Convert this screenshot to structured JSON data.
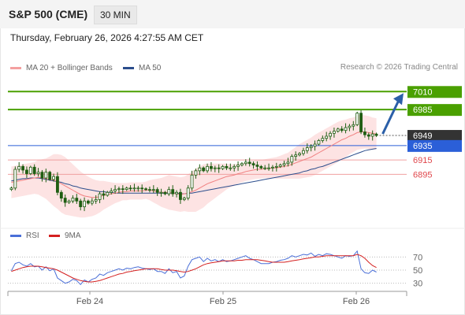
{
  "header": {
    "title": "S&P 500 (CME)",
    "timeframe": "30 MIN"
  },
  "timestamp": "Thursday, February 26, 2026 4:27:55 AM CET",
  "legend": {
    "ma20": {
      "label": "MA 20 + Bollinger Bands",
      "color": "#f08080"
    },
    "ma50": {
      "label": "MA 50",
      "color": "#2b4d8c"
    },
    "rsi": {
      "label": "RSI",
      "color": "#4a6fd8"
    },
    "ma9": {
      "label": "9MA",
      "color": "#d42020"
    }
  },
  "source": "Research © 2026 Trading Central",
  "colors": {
    "resistance": "#4aa000",
    "support": "#e0474c",
    "pivot": "#2b5fd8",
    "last": "#333333",
    "candle": "#1f5e12",
    "arrow": "#2b5fa8"
  },
  "chart_data": [
    {
      "type": "candlestick",
      "ylim": [
        6820,
        7030
      ],
      "x_ticks": [
        "Feb 24",
        "Feb 25",
        "Feb 26"
      ],
      "levels": [
        {
          "label": "7010",
          "value": 7010,
          "kind": "resistance"
        },
        {
          "label": "6985",
          "value": 6985,
          "kind": "resistance"
        },
        {
          "label": "6949",
          "value": 6949,
          "kind": "last"
        },
        {
          "label": "6935",
          "value": 6935,
          "kind": "pivot"
        },
        {
          "label": "6915",
          "value": 6915,
          "kind": "support"
        },
        {
          "label": "6895",
          "value": 6895,
          "kind": "support"
        }
      ],
      "close": [
        6876,
        6902,
        6906,
        6901,
        6896,
        6905,
        6896,
        6898,
        6890,
        6898,
        6888,
        6892,
        6870,
        6862,
        6856,
        6858,
        6862,
        6858,
        6850,
        6858,
        6855,
        6858,
        6860,
        6868,
        6866,
        6870,
        6872,
        6874,
        6875,
        6874,
        6876,
        6875,
        6876,
        6876,
        6875,
        6874,
        6873,
        6874,
        6870,
        6870,
        6868,
        6874,
        6868,
        6870,
        6860,
        6862,
        6876,
        6894,
        6900,
        6904,
        6900,
        6906,
        6903,
        6904,
        6903,
        6906,
        6904,
        6904,
        6906,
        6908,
        6910,
        6912,
        6910,
        6908,
        6906,
        6904,
        6904,
        6904,
        6905,
        6906,
        6908,
        6910,
        6912,
        6920,
        6922,
        6924,
        6928,
        6932,
        6934,
        6937,
        6942,
        6945,
        6948,
        6952,
        6955,
        6958,
        6956,
        6960,
        6962,
        6964,
        6980,
        6954,
        6950,
        6948,
        6951,
        6949
      ],
      "ma20": [
        6884,
        6885,
        6886,
        6887,
        6888,
        6889,
        6890,
        6891,
        6890,
        6889,
        6888,
        6887,
        6885,
        6882,
        6879,
        6876,
        6873,
        6870,
        6867,
        6865,
        6864,
        6863,
        6863,
        6864,
        6866,
        6867,
        6868,
        6869,
        6870,
        6871,
        6871,
        6872,
        6872,
        6872,
        6872,
        6873,
        6873,
        6872,
        6871,
        6870,
        6870,
        6870,
        6869,
        6868,
        6867,
        6868,
        6869,
        6871,
        6873,
        6876,
        6879,
        6882,
        6884,
        6886,
        6888,
        6890,
        6892,
        6893,
        6894,
        6896,
        6897,
        6899,
        6900,
        6901,
        6902,
        6902,
        6903,
        6903,
        6904,
        6904,
        6905,
        6906,
        6907,
        6909,
        6911,
        6913,
        6915,
        6917,
        6919,
        6922,
        6925,
        6928,
        6931,
        6934,
        6937,
        6940,
        6943,
        6945,
        6948,
        6950,
        6953,
        6954,
        6954,
        6953,
        6952,
        6951
      ],
      "ma50": [
        6886,
        6887,
        6888,
        6889,
        6889,
        6890,
        6890,
        6890,
        6889,
        6888,
        6887,
        6886,
        6885,
        6884,
        6882,
        6881,
        6879,
        6878,
        6876,
        6875,
        6874,
        6873,
        6872,
        6871,
        6871,
        6870,
        6870,
        6869,
        6869,
        6869,
        6869,
        6869,
        6869,
        6869,
        6869,
        6869,
        6869,
        6869,
        6869,
        6869,
        6869,
        6869,
        6869,
        6869,
        6868,
        6868,
        6869,
        6869,
        6870,
        6871,
        6872,
        6873,
        6874,
        6875,
        6876,
        6877,
        6878,
        6879,
        6880,
        6881,
        6882,
        6883,
        6884,
        6885,
        6886,
        6887,
        6888,
        6889,
        6890,
        6891,
        6892,
        6893,
        6894,
        6895,
        6896,
        6897,
        6899,
        6900,
        6902,
        6903,
        6905,
        6906,
        6908,
        6910,
        6912,
        6914,
        6916,
        6918,
        6920,
        6922,
        6924,
        6926,
        6928,
        6929,
        6930,
        6931
      ],
      "bollinger_width": [
        22,
        22,
        22,
        22,
        22,
        22,
        22,
        24,
        26,
        28,
        32,
        36,
        38,
        40,
        40,
        38,
        36,
        34,
        32,
        30,
        28,
        26,
        24,
        22,
        20,
        18,
        16,
        14,
        13,
        12,
        12,
        12,
        12,
        12,
        12,
        12,
        14,
        16,
        18,
        20,
        22,
        24,
        24,
        24,
        24,
        24,
        26,
        28,
        30,
        30,
        30,
        28,
        26,
        24,
        22,
        20,
        18,
        16,
        15,
        14,
        13,
        13,
        13,
        13,
        13,
        13,
        13,
        14,
        14,
        15,
        16,
        17,
        18,
        20,
        22,
        24,
        25,
        26,
        27,
        28,
        28,
        28,
        28,
        28,
        28,
        28,
        27,
        26,
        25,
        24,
        24,
        24,
        23,
        23,
        22,
        22
      ]
    },
    {
      "type": "line",
      "ylim": [
        20,
        80
      ],
      "y_ticks": [
        "70",
        "50",
        "30"
      ],
      "series": [
        {
          "name": "RSI",
          "values": [
            49,
            60,
            62,
            58,
            56,
            60,
            55,
            56,
            50,
            55,
            49,
            52,
            38,
            34,
            30,
            32,
            36,
            34,
            28,
            35,
            32,
            36,
            38,
            44,
            42,
            46,
            48,
            50,
            52,
            50,
            53,
            52,
            54,
            55,
            53,
            52,
            51,
            52,
            48,
            48,
            45,
            52,
            46,
            48,
            38,
            41,
            56,
            66,
            68,
            70,
            63,
            68,
            64,
            66,
            63,
            66,
            63,
            64,
            66,
            68,
            70,
            72,
            68,
            66,
            63,
            60,
            60,
            60,
            62,
            63,
            65,
            66,
            68,
            72,
            70,
            72,
            74,
            73,
            76,
            71,
            74,
            72,
            75,
            74,
            72,
            70,
            68,
            72,
            71,
            72,
            79,
            52,
            46,
            45,
            50,
            47
          ]
        },
        {
          "name": "9MA",
          "values": [
            48,
            50,
            52,
            54,
            55,
            56,
            56,
            56,
            55,
            54,
            53,
            52,
            50,
            47,
            44,
            41,
            38,
            36,
            34,
            33,
            32,
            32,
            33,
            34,
            36,
            38,
            40,
            42,
            44,
            45,
            47,
            48,
            49,
            50,
            51,
            52,
            52,
            52,
            52,
            51,
            50,
            50,
            50,
            49,
            48,
            47,
            48,
            50,
            52,
            55,
            58,
            60,
            61,
            62,
            63,
            64,
            64,
            64,
            64,
            65,
            65,
            66,
            66,
            66,
            66,
            65,
            64,
            63,
            62,
            62,
            62,
            62,
            63,
            64,
            65,
            66,
            67,
            68,
            69,
            70,
            70,
            71,
            72,
            72,
            72,
            72,
            72,
            72,
            72,
            72,
            74,
            72,
            68,
            62,
            57,
            54
          ]
        }
      ]
    }
  ]
}
